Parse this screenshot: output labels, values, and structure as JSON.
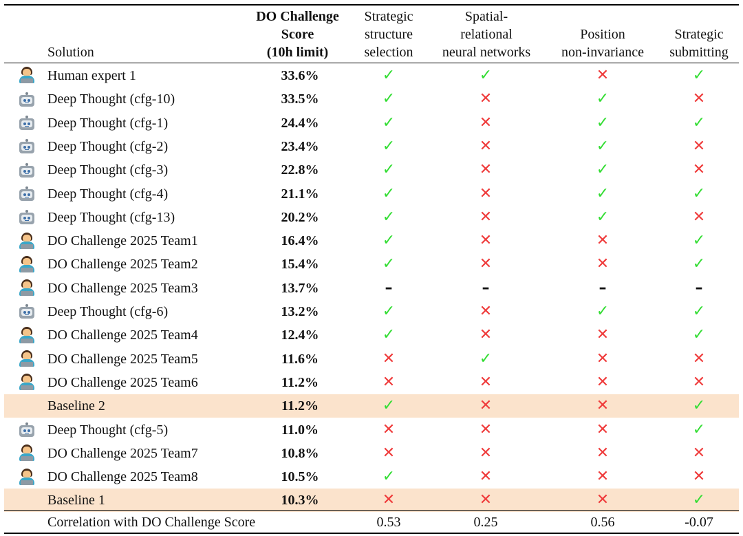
{
  "headers": {
    "solution": "Solution",
    "score": [
      "DO Challenge",
      "Score",
      "(10h limit)"
    ],
    "col1": [
      "Strategic",
      "structure",
      "selection"
    ],
    "col2": [
      "Spatial-",
      "relational",
      "neural networks"
    ],
    "col3": [
      "Position",
      "non-invariance"
    ],
    "col4": [
      "Strategic",
      "submitting"
    ]
  },
  "symbols": {
    "check": "✓",
    "cross": "✕",
    "dash": "–"
  },
  "colors": {
    "check": "#33dd33",
    "cross": "#ef3b3b",
    "highlight": "#fbe3cc"
  },
  "rows": [
    {
      "icon": "person-laptop-icon",
      "name": "Human expert 1",
      "score": "33.6%",
      "marks": [
        "check",
        "check",
        "cross",
        "check"
      ]
    },
    {
      "icon": "robot-icon",
      "name": "Deep Thought (cfg-10)",
      "score": "33.5%",
      "marks": [
        "check",
        "cross",
        "check",
        "cross"
      ]
    },
    {
      "icon": "robot-icon",
      "name": "Deep Thought (cfg-1)",
      "score": "24.4%",
      "marks": [
        "check",
        "cross",
        "check",
        "check"
      ]
    },
    {
      "icon": "robot-icon",
      "name": "Deep Thought (cfg-2)",
      "score": "23.4%",
      "marks": [
        "check",
        "cross",
        "check",
        "cross"
      ]
    },
    {
      "icon": "robot-icon",
      "name": "Deep Thought (cfg-3)",
      "score": "22.8%",
      "marks": [
        "check",
        "cross",
        "check",
        "cross"
      ]
    },
    {
      "icon": "robot-icon",
      "name": "Deep Thought (cfg-4)",
      "score": "21.1%",
      "marks": [
        "check",
        "cross",
        "check",
        "check"
      ]
    },
    {
      "icon": "robot-icon",
      "name": "Deep Thought (cfg-13)",
      "score": "20.2%",
      "marks": [
        "check",
        "cross",
        "check",
        "cross"
      ]
    },
    {
      "icon": "person-laptop-icon",
      "name": "DO Challenge 2025 Team1",
      "score": "16.4%",
      "marks": [
        "check",
        "cross",
        "cross",
        "check"
      ]
    },
    {
      "icon": "person-laptop-icon",
      "name": "DO Challenge 2025 Team2",
      "score": "15.4%",
      "marks": [
        "check",
        "cross",
        "cross",
        "check"
      ]
    },
    {
      "icon": "person-laptop-icon",
      "name": "DO Challenge 2025 Team3",
      "score": "13.7%",
      "marks": [
        "dash",
        "dash",
        "dash",
        "dash"
      ]
    },
    {
      "icon": "robot-icon",
      "name": "Deep Thought (cfg-6)",
      "score": "13.2%",
      "marks": [
        "check",
        "cross",
        "check",
        "check"
      ]
    },
    {
      "icon": "person-laptop-icon",
      "name": "DO Challenge 2025 Team4",
      "score": "12.4%",
      "marks": [
        "check",
        "cross",
        "cross",
        "check"
      ]
    },
    {
      "icon": "person-laptop-icon",
      "name": "DO Challenge 2025 Team5",
      "score": "11.6%",
      "marks": [
        "cross",
        "check",
        "cross",
        "cross"
      ]
    },
    {
      "icon": "person-laptop-icon",
      "name": "DO Challenge 2025 Team6",
      "score": "11.2%",
      "marks": [
        "cross",
        "cross",
        "cross",
        "cross"
      ]
    },
    {
      "icon": "",
      "name": "Baseline 2",
      "score": "11.2%",
      "marks": [
        "check",
        "cross",
        "cross",
        "check"
      ],
      "highlight": true
    },
    {
      "icon": "robot-icon",
      "name": "Deep Thought (cfg-5)",
      "score": "11.0%",
      "marks": [
        "cross",
        "cross",
        "cross",
        "check"
      ]
    },
    {
      "icon": "person-laptop-icon",
      "name": "DO Challenge 2025 Team7",
      "score": "10.8%",
      "marks": [
        "cross",
        "cross",
        "cross",
        "cross"
      ]
    },
    {
      "icon": "person-laptop-icon",
      "name": "DO Challenge 2025 Team8",
      "score": "10.5%",
      "marks": [
        "check",
        "cross",
        "cross",
        "cross"
      ]
    },
    {
      "icon": "",
      "name": "Baseline 1",
      "score": "10.3%",
      "marks": [
        "cross",
        "cross",
        "cross",
        "check"
      ],
      "highlight": true
    }
  ],
  "correlation": {
    "label": "Correlation with DO Challenge Score",
    "values": [
      "0.53",
      "0.25",
      "0.56",
      "-0.07"
    ]
  }
}
